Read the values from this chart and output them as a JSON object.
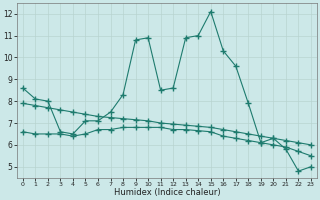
{
  "xlabel": "Humidex (Indice chaleur)",
  "bg_color": "#cce8e8",
  "line_color": "#1e7b6e",
  "grid_color": "#b8d4d0",
  "xlim": [
    -0.5,
    23.5
  ],
  "ylim": [
    4.5,
    12.5
  ],
  "xticks": [
    0,
    1,
    2,
    3,
    4,
    5,
    6,
    7,
    8,
    9,
    10,
    11,
    12,
    13,
    14,
    15,
    16,
    17,
    18,
    19,
    20,
    21,
    22,
    23
  ],
  "yticks": [
    5,
    6,
    7,
    8,
    9,
    10,
    11,
    12
  ],
  "line1_x": [
    0,
    1,
    2,
    3,
    4,
    5,
    6,
    7,
    8,
    9,
    10,
    11,
    12,
    13,
    14,
    15,
    16,
    17,
    18,
    19,
    20,
    21,
    22,
    23
  ],
  "line1_y": [
    8.6,
    8.1,
    8.0,
    6.6,
    6.5,
    7.1,
    7.1,
    7.5,
    8.3,
    10.8,
    10.9,
    8.5,
    8.6,
    10.9,
    11.0,
    12.1,
    10.3,
    9.6,
    7.9,
    6.1,
    6.3,
    5.8,
    4.8,
    5.0
  ],
  "line2_x": [
    0,
    1,
    2,
    3,
    4,
    5,
    6,
    7,
    8,
    9,
    10,
    11,
    12,
    13,
    14,
    15,
    16,
    17,
    18,
    19,
    20,
    21,
    22,
    23
  ],
  "line2_y": [
    7.9,
    7.8,
    7.7,
    7.6,
    7.5,
    7.4,
    7.3,
    7.25,
    7.2,
    7.15,
    7.1,
    7.0,
    6.95,
    6.9,
    6.85,
    6.8,
    6.7,
    6.6,
    6.5,
    6.4,
    6.3,
    6.2,
    6.1,
    6.0
  ],
  "line3_x": [
    0,
    1,
    2,
    3,
    4,
    5,
    6,
    7,
    8,
    9,
    10,
    11,
    12,
    13,
    14,
    15,
    16,
    17,
    18,
    19,
    20,
    21,
    22,
    23
  ],
  "line3_y": [
    6.6,
    6.5,
    6.5,
    6.5,
    6.4,
    6.5,
    6.7,
    6.7,
    6.8,
    6.8,
    6.8,
    6.8,
    6.7,
    6.7,
    6.65,
    6.6,
    6.4,
    6.3,
    6.2,
    6.1,
    6.0,
    5.9,
    5.7,
    5.5
  ]
}
